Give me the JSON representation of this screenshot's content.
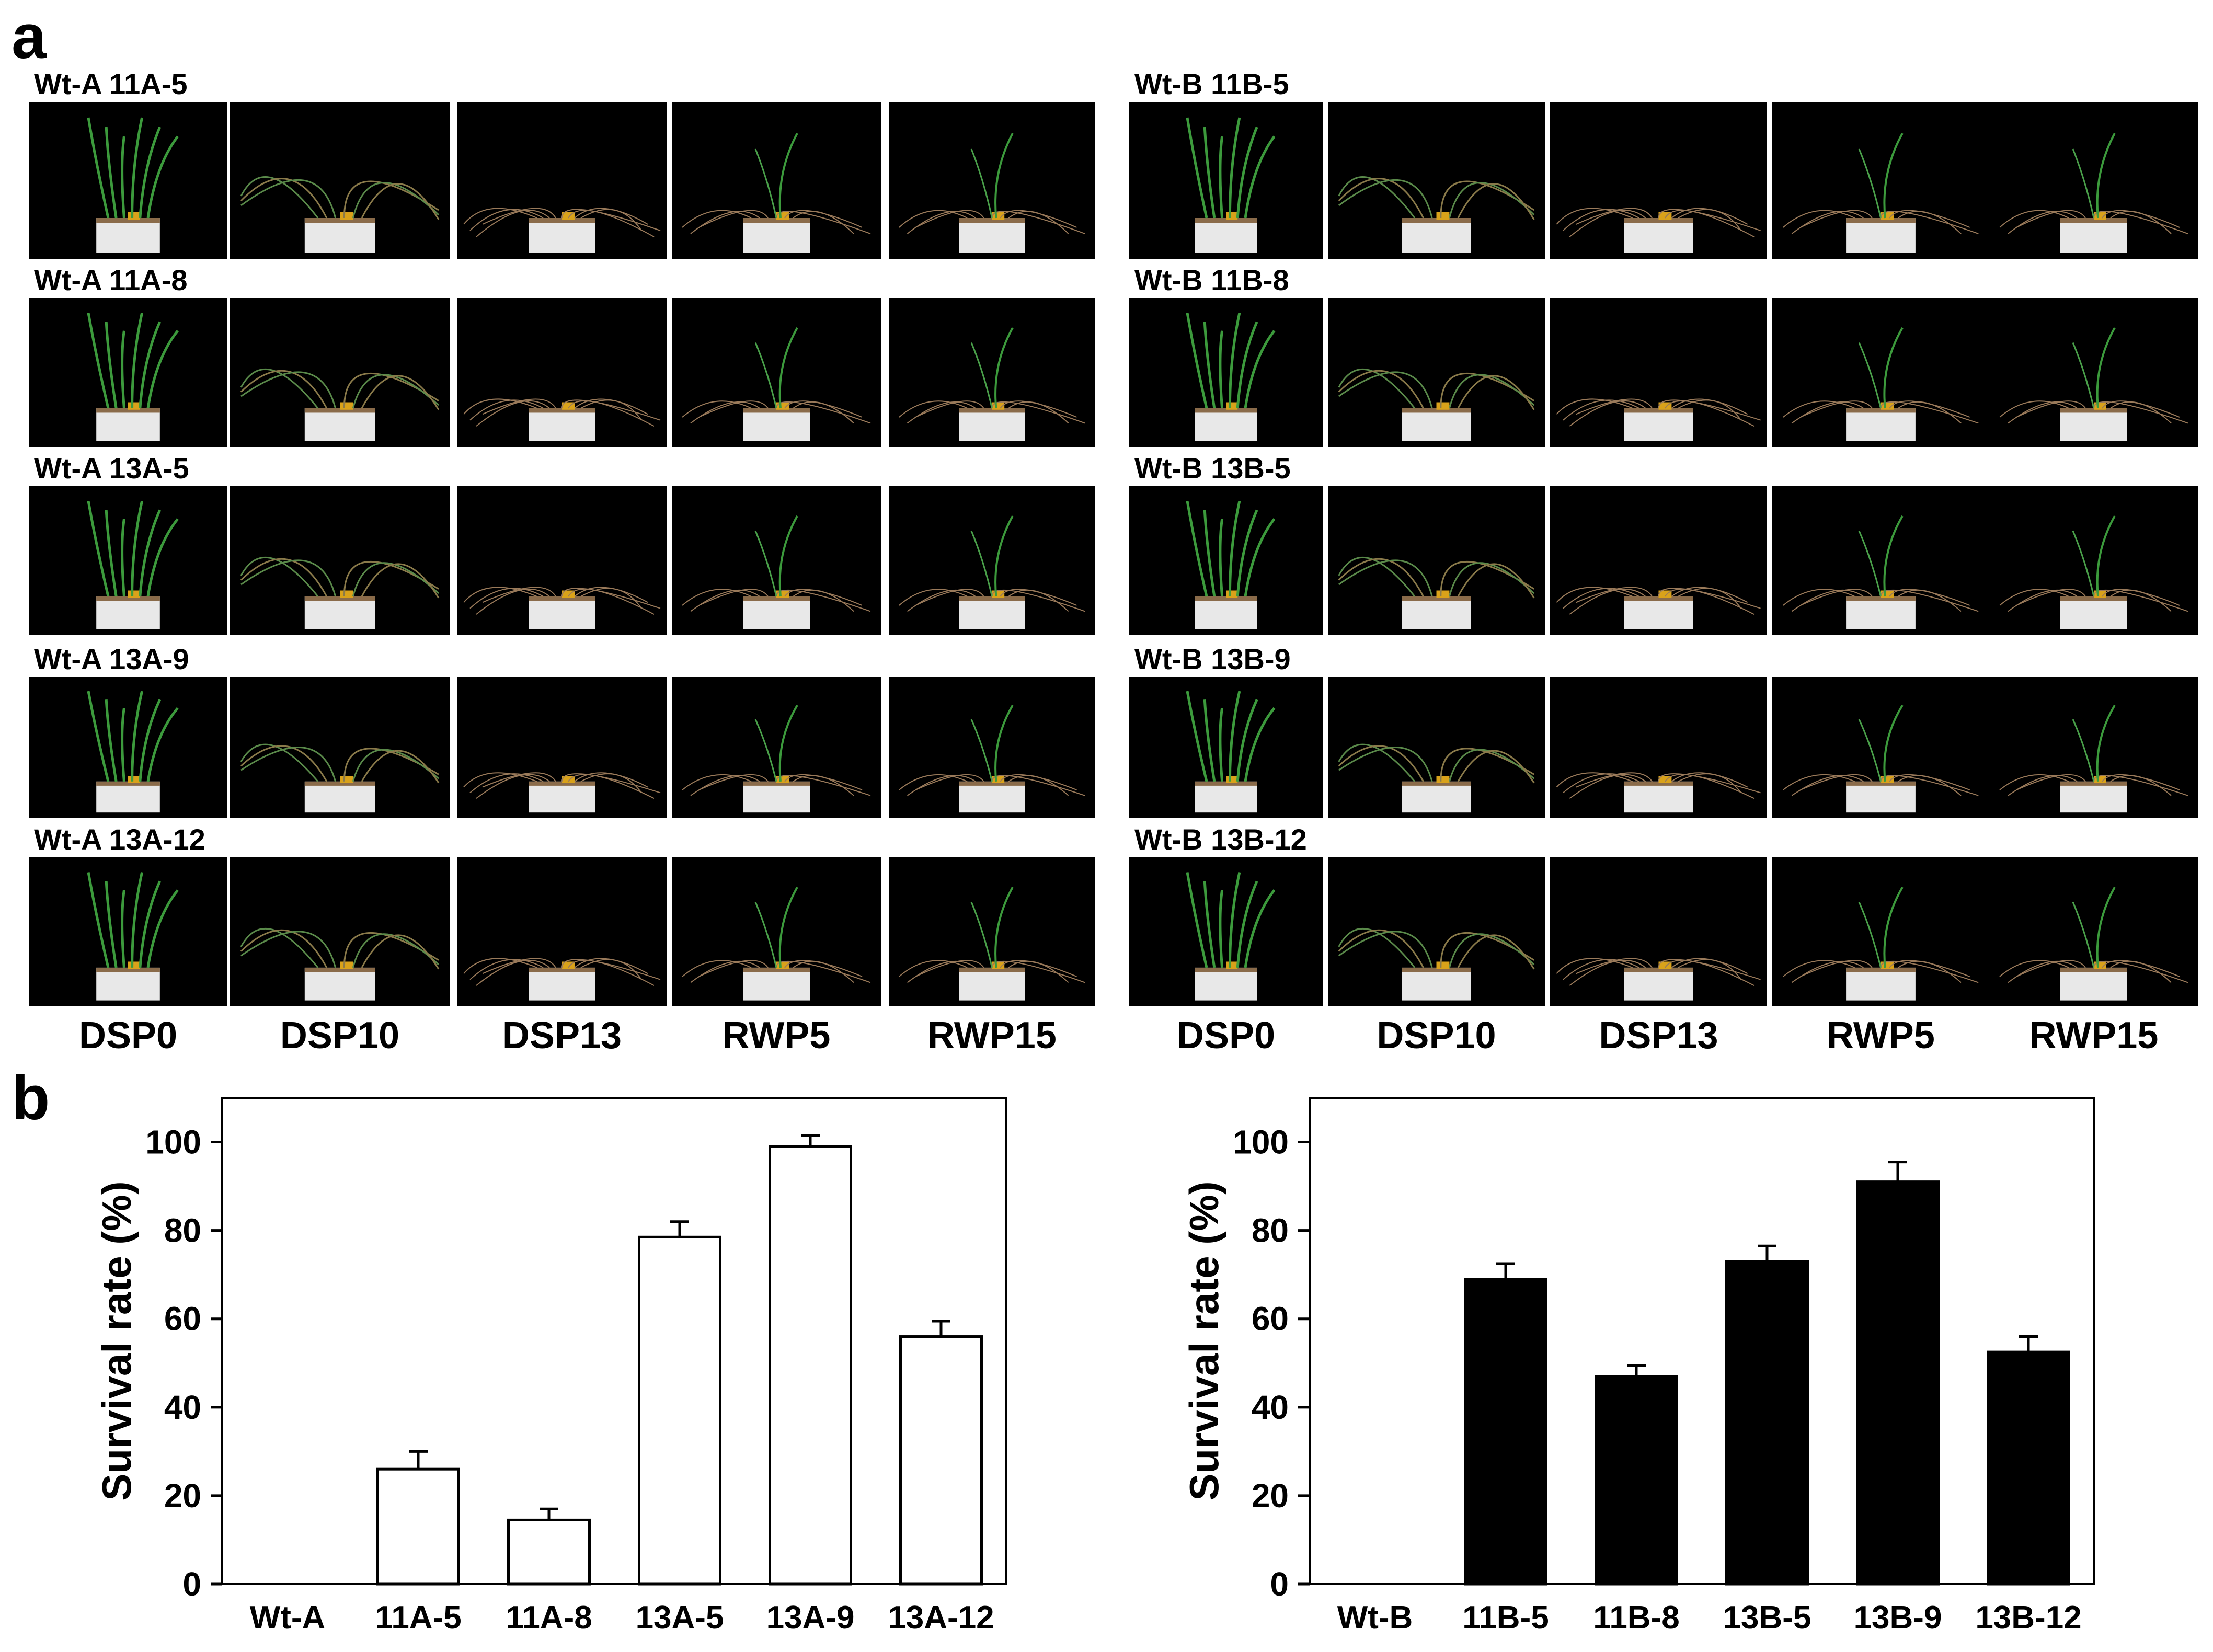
{
  "figure": {
    "panel_a_label": "a",
    "panel_b_label": "b",
    "stage_labels": [
      "DSP0",
      "DSP10",
      "DSP13",
      "RWP5",
      "RWP15"
    ],
    "left_rows": [
      "Wt-A 11A-5",
      "Wt-A 11A-8",
      "Wt-A 13A-5",
      "Wt-A 13A-9",
      "Wt-A 13A-12"
    ],
    "right_rows": [
      "Wt-B  11B-5",
      "Wt-B  11B-8",
      "Wt-B 13B-5",
      "Wt-B 13B-9",
      "Wt-B 13B-12"
    ]
  },
  "chart_data": [
    {
      "type": "bar",
      "categories": [
        "Wt-A",
        "11A-5",
        "11A-8",
        "13A-5",
        "13A-9",
        "13A-12"
      ],
      "values": [
        0,
        26,
        14.5,
        78.5,
        99,
        56
      ],
      "errors": [
        0,
        4,
        2.5,
        3.5,
        2.5,
        3.5
      ],
      "ylabel": "Survival rate (%)",
      "ylim": [
        0,
        110
      ],
      "yticks": [
        0,
        20,
        40,
        60,
        80,
        100
      ],
      "bar_fill": "#ffffff",
      "bar_stroke": "#000000"
    },
    {
      "type": "bar",
      "categories": [
        "Wt-B",
        "11B-5",
        "11B-8",
        "13B-5",
        "13B-9",
        "13B-12"
      ],
      "values": [
        0,
        69,
        47,
        73,
        91,
        52.5
      ],
      "errors": [
        0,
        3.5,
        2.5,
        3.5,
        4.5,
        3.5
      ],
      "ylabel": "Survival rate (%)",
      "ylim": [
        0,
        110
      ],
      "yticks": [
        0,
        20,
        40,
        60,
        80,
        100
      ],
      "bar_fill": "#000000",
      "bar_stroke": "#000000"
    }
  ]
}
